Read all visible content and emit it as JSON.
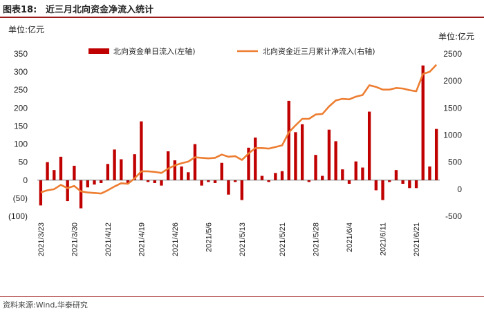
{
  "header": {
    "figure_label": "图表18:",
    "title": "近三月北向资金净流入统计"
  },
  "units": {
    "left": "单位:亿元",
    "right": "单位:亿元"
  },
  "source": "资料来源:Wind,华泰研究",
  "colors": {
    "bar": "#c00000",
    "line": "#ed7d31",
    "accent": "#9c1b1b"
  },
  "chart_data": {
    "type": "bar+line",
    "legend": {
      "bar": "北向资金单日流入(左轴)",
      "line": "北向资金近三月累计净流入(右轴)",
      "position": "top"
    },
    "ylim_left": [
      -100,
      350
    ],
    "ylim_right": [
      -500,
      2500
    ],
    "yticks_left": [
      "350",
      "300",
      "250",
      "200",
      "150",
      "100",
      "50",
      "0",
      "(50)",
      "(100)"
    ],
    "yticks_right": [
      "2500",
      "2000",
      "1500",
      "1000",
      "500",
      "0",
      "-500"
    ],
    "xtick_labels": [
      "2021/3/23",
      "2021/3/30",
      "2021/4/12",
      "2021/4/19",
      "2021/4/26",
      "2021/5/6",
      "2021/5/13",
      "2021/5/21",
      "2021/5/28",
      "2021/6/4",
      "2021/6/11",
      "2021/6/21"
    ],
    "xtick_index": [
      0,
      5,
      10,
      15,
      20,
      25,
      30,
      36,
      41,
      46,
      51,
      56
    ],
    "daily_inflow": [
      -70,
      50,
      28,
      65,
      -58,
      40,
      -78,
      -20,
      -12,
      -8,
      45,
      85,
      58,
      -10,
      72,
      163,
      -5,
      -8,
      -15,
      80,
      55,
      38,
      22,
      100,
      -15,
      -5,
      -8,
      48,
      -40,
      -5,
      -55,
      90,
      118,
      12,
      -5,
      20,
      25,
      220,
      133,
      155,
      -5,
      70,
      12,
      140,
      108,
      30,
      -10,
      52,
      35,
      190,
      -28,
      -55,
      -5,
      28,
      -10,
      -22,
      -22,
      318,
      38,
      142
    ],
    "cumulative_3m": [
      -60,
      -20,
      0,
      80,
      20,
      60,
      -40,
      -60,
      -70,
      -80,
      -20,
      50,
      110,
      100,
      200,
      330,
      330,
      320,
      300,
      380,
      440,
      480,
      510,
      590,
      580,
      570,
      580,
      640,
      600,
      610,
      540,
      660,
      760,
      760,
      750,
      780,
      810,
      1050,
      1180,
      1300,
      1300,
      1380,
      1390,
      1530,
      1640,
      1670,
      1660,
      1710,
      1740,
      1920,
      1890,
      1840,
      1840,
      1870,
      1860,
      1830,
      1810,
      2130,
      2170,
      2300
    ]
  }
}
